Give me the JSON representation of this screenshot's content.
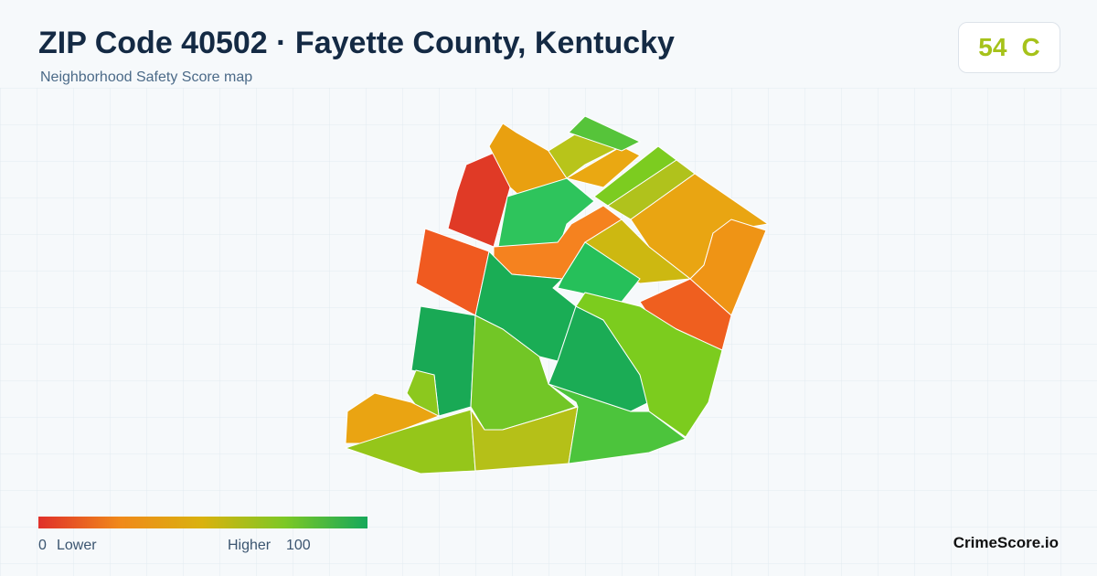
{
  "header": {
    "title": "ZIP Code 40502 · Fayette County, Kentucky",
    "subtitle": "Neighborhood Safety Score map"
  },
  "score": {
    "value": "54",
    "grade": "C"
  },
  "legend": {
    "min": "0",
    "min_label": "Lower",
    "max_label": "Higher",
    "max": "100"
  },
  "brand": "CrimeScore.io"
}
